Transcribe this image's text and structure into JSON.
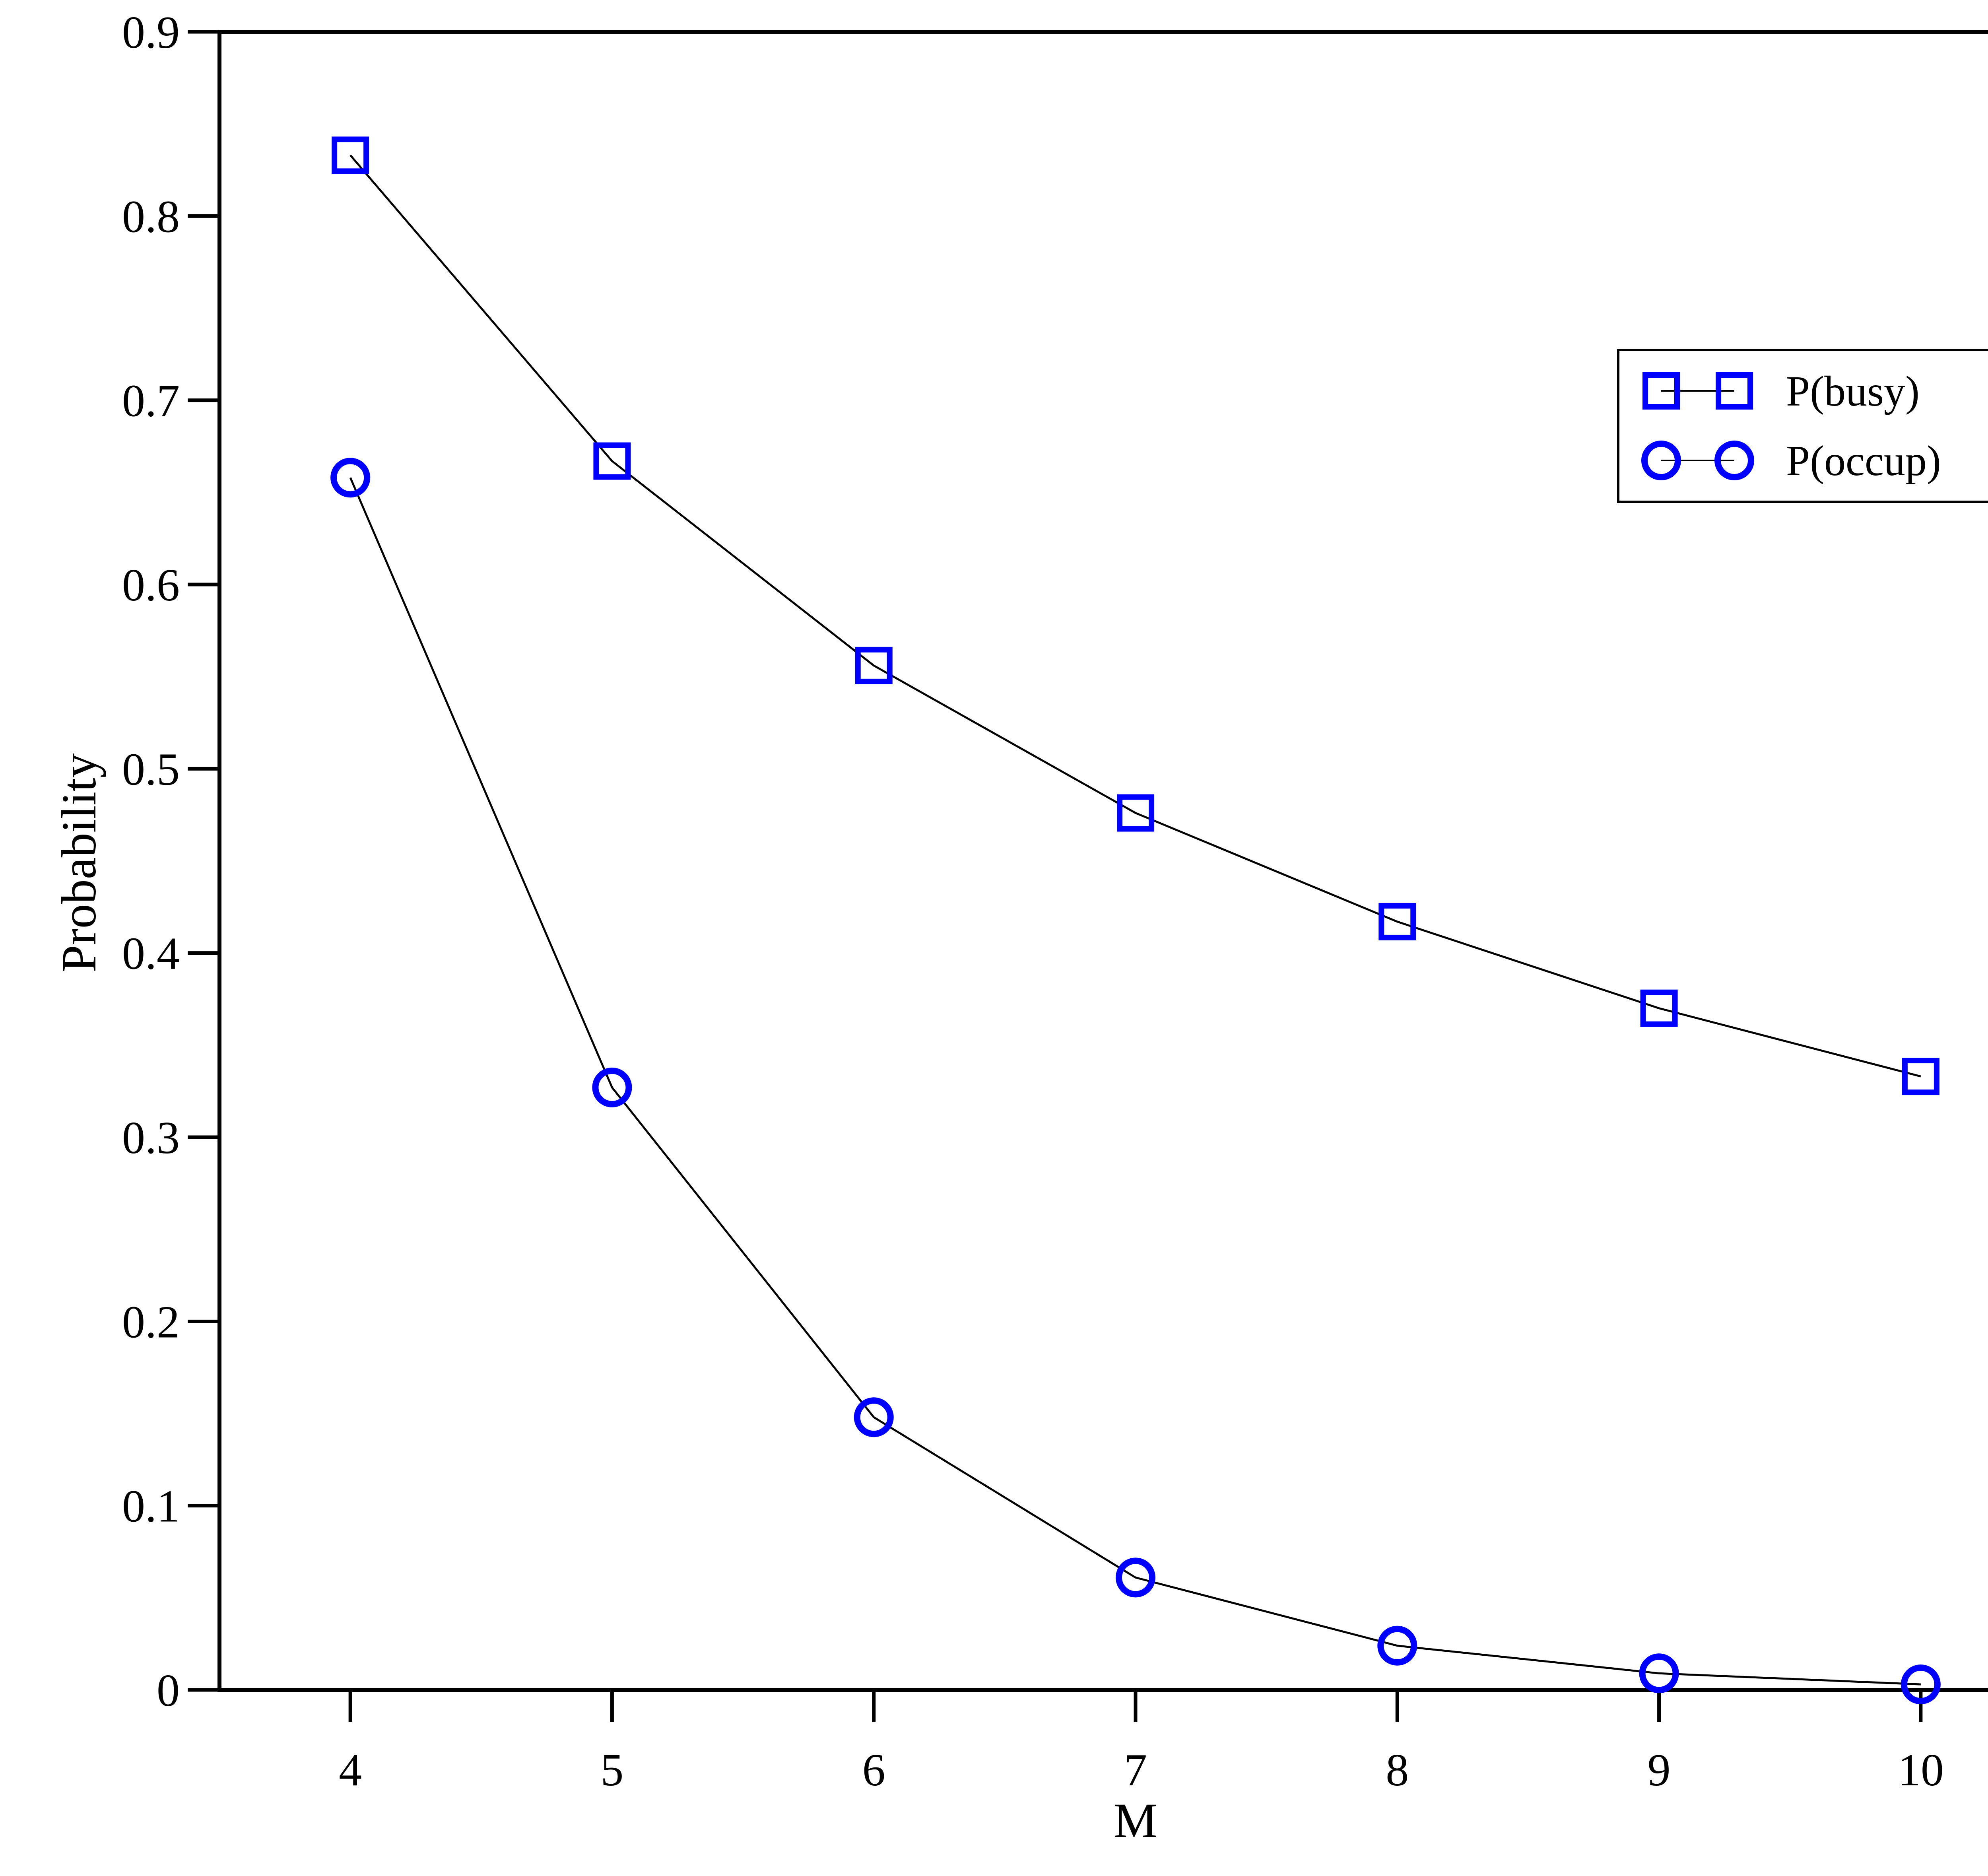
{
  "chart_data": {
    "type": "line",
    "title": "",
    "xlabel": "M",
    "ylabel": "Probability",
    "xlim": [
      3.5,
      10.5
    ],
    "ylim": [
      0,
      0.9
    ],
    "x": [
      4,
      5,
      6,
      7,
      8,
      9,
      10
    ],
    "xticks": [
      "4",
      "5",
      "6",
      "7",
      "8",
      "9",
      "10"
    ],
    "yticks": [
      "0",
      "0.1",
      "0.2",
      "0.3",
      "0.4",
      "0.5",
      "0.6",
      "0.7",
      "0.8",
      "0.9"
    ],
    "ytick_values": [
      0,
      0.1,
      0.2,
      0.3,
      0.4,
      0.5,
      0.6,
      0.7,
      0.8,
      0.9
    ],
    "grid": false,
    "legend_position": "upper-right",
    "series": [
      {
        "name": "P(busy)",
        "marker": "square",
        "color": "#0000ff",
        "line_color": "#000000",
        "values": [
          0.833,
          0.667,
          0.556,
          0.476,
          0.417,
          0.37,
          0.333
        ]
      },
      {
        "name": "P(occup)",
        "marker": "circle",
        "color": "#0000ff",
        "line_color": "#000000",
        "values": [
          0.658,
          0.327,
          0.148,
          0.061,
          0.024,
          0.009,
          0.003
        ]
      }
    ]
  }
}
